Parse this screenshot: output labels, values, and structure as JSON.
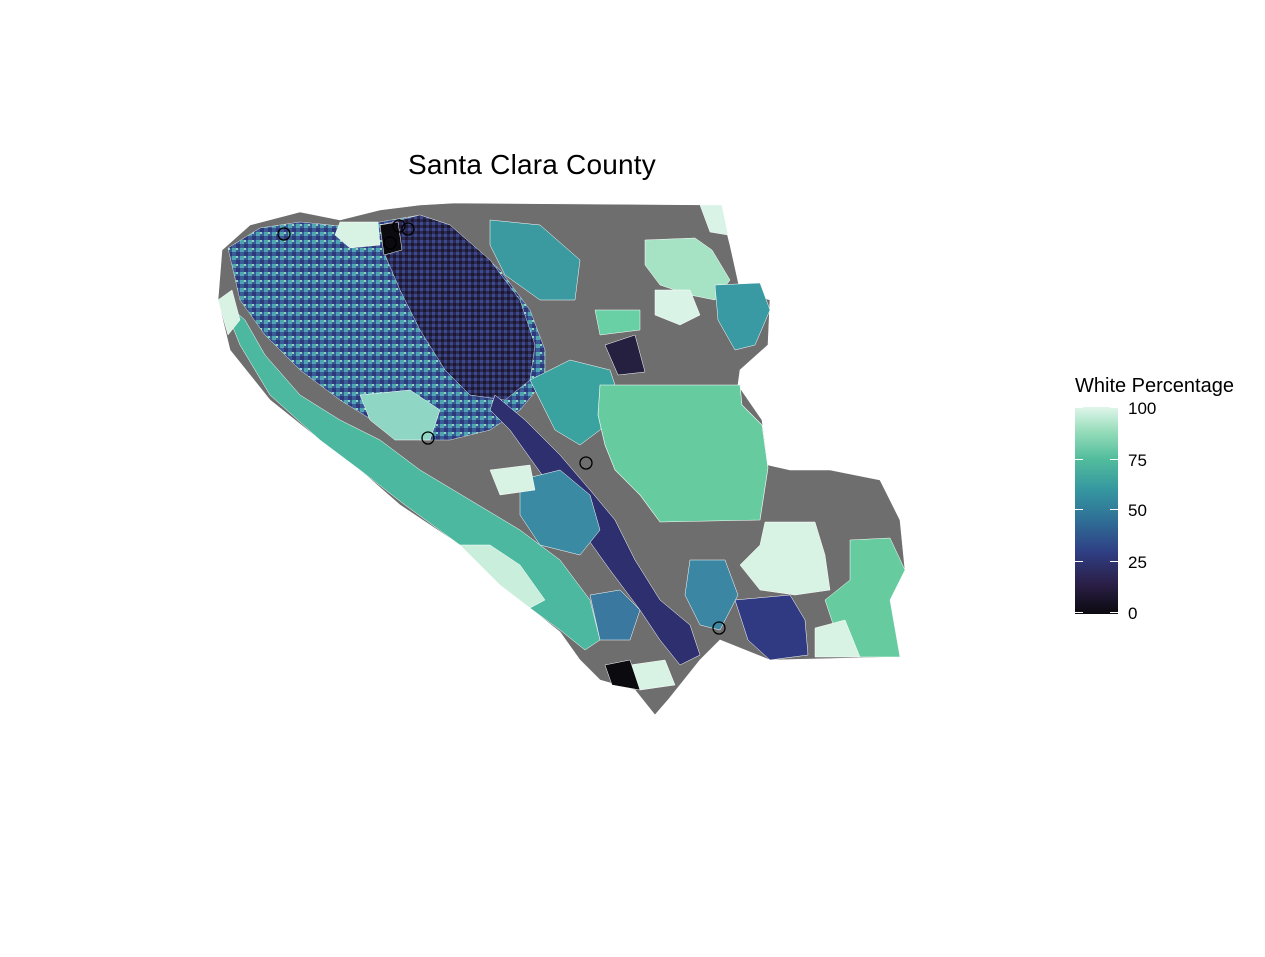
{
  "title": "Santa Clara County",
  "legend": {
    "title": "White Percentage",
    "ticks": [
      "100",
      "75",
      "50",
      "25",
      "0"
    ],
    "scale_min": 0,
    "scale_max": 100,
    "colors": [
      "#0b0a0f",
      "#2a1e45",
      "#2f3f84",
      "#2f6e96",
      "#3597a0",
      "#52bd9c",
      "#95dcba",
      "#dff6ea"
    ]
  },
  "map_colors": {
    "missing": "#6e6e6e",
    "border": "#ffffff"
  },
  "chart_data": {
    "type": "choropleth",
    "title": "Santa Clara County",
    "legend_title": "White Percentage",
    "legend_ticks": [
      0,
      25,
      50,
      75,
      100
    ],
    "value_range": [
      0,
      100
    ],
    "missing_color": "#6e6e6e"
  }
}
